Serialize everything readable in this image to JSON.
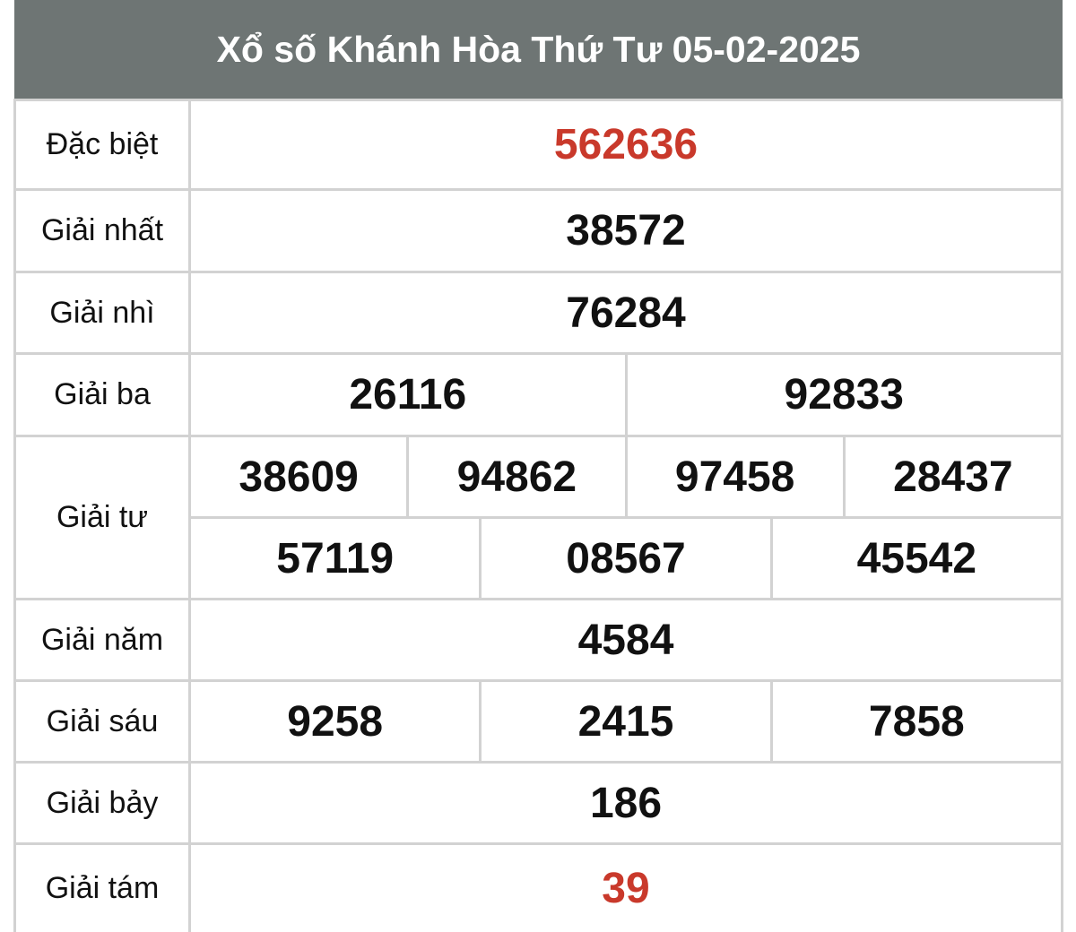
{
  "title": "Xổ số Khánh Hòa Thứ Tư 05-02-2025",
  "colors": {
    "header_bg": "#6e7574",
    "highlight": "#c9392b",
    "border": "#d2d2d2"
  },
  "prizes": [
    {
      "label": "Đặc biệt",
      "rows": [
        [
          "562636"
        ]
      ]
    },
    {
      "label": "Giải nhất",
      "rows": [
        [
          "38572"
        ]
      ]
    },
    {
      "label": "Giải nhì",
      "rows": [
        [
          "76284"
        ]
      ]
    },
    {
      "label": "Giải ba",
      "rows": [
        [
          "26116",
          "92833"
        ]
      ]
    },
    {
      "label": "Giải tư",
      "rows": [
        [
          "38609",
          "94862",
          "97458",
          "28437"
        ],
        [
          "57119",
          "08567",
          "45542"
        ]
      ]
    },
    {
      "label": "Giải năm",
      "rows": [
        [
          "4584"
        ]
      ]
    },
    {
      "label": "Giải sáu",
      "rows": [
        [
          "9258",
          "2415",
          "7858"
        ]
      ]
    },
    {
      "label": "Giải bảy",
      "rows": [
        [
          "186"
        ]
      ]
    },
    {
      "label": "Giải tám",
      "rows": [
        [
          "39"
        ]
      ]
    }
  ]
}
